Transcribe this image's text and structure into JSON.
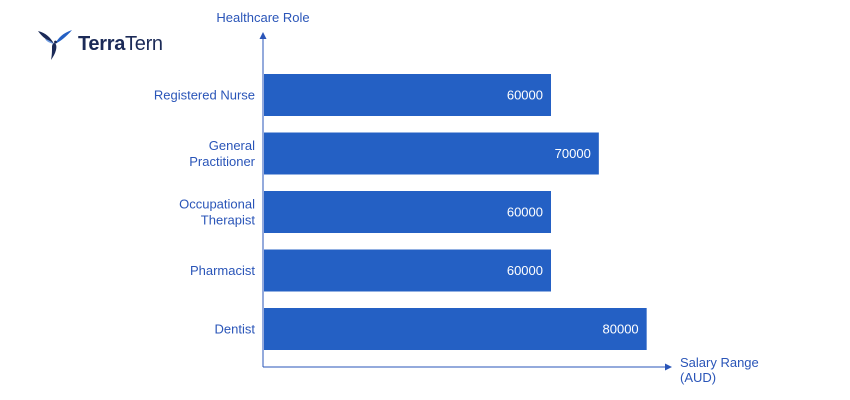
{
  "brand": {
    "name_bold": "Terra",
    "name_regular": "Tern",
    "logo_icon": "tern-bird-icon",
    "color": "#1b2a57"
  },
  "chart_data": {
    "type": "bar",
    "orientation": "horizontal",
    "categories": [
      [
        "Registered Nurse"
      ],
      [
        "General",
        "Practitioner"
      ],
      [
        "Occupational",
        "Therapist"
      ],
      [
        "Pharmacist"
      ],
      [
        "Dentist"
      ]
    ],
    "values": [
      60000,
      70000,
      60000,
      60000,
      80000
    ],
    "data_labels": [
      "60000",
      "70000",
      "60000",
      "60000",
      "80000"
    ],
    "xlabel": [
      "Salary Range",
      "(AUD)"
    ],
    "ylabel": "Healthcare Role",
    "xlim": [
      0,
      100000
    ],
    "grid": false,
    "bar_color": "#2460c4",
    "axis_color": "#2a55b8",
    "text_color": "#2a55b8"
  }
}
